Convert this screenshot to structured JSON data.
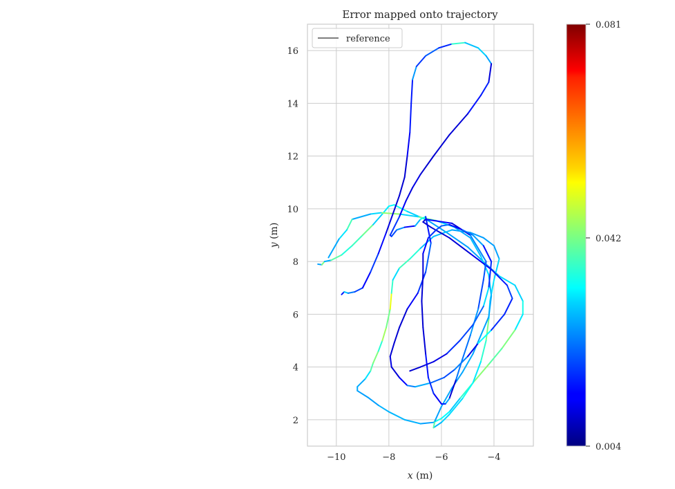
{
  "chart_data": {
    "type": "line",
    "title": "Error mapped onto trajectory",
    "xlabel_var": "x",
    "xlabel_unit": "(m)",
    "ylabel_var": "y",
    "ylabel_unit": "(m)",
    "xlim": [
      -11.1,
      -2.5
    ],
    "ylim": [
      1.0,
      17.0
    ],
    "xticks": [
      {
        "value": -10,
        "label": "−10"
      },
      {
        "value": -8,
        "label": "−8"
      },
      {
        "value": -6,
        "label": "−6"
      },
      {
        "value": -4,
        "label": "−4"
      }
    ],
    "yticks": [
      {
        "value": 2,
        "label": "2"
      },
      {
        "value": 4,
        "label": "4"
      },
      {
        "value": 6,
        "label": "6"
      },
      {
        "value": 8,
        "label": "8"
      },
      {
        "value": 10,
        "label": "10"
      },
      {
        "value": 12,
        "label": "12"
      },
      {
        "value": 14,
        "label": "14"
      },
      {
        "value": 16,
        "label": "16"
      }
    ],
    "grid": true,
    "legend": {
      "position": "top-left",
      "entries": [
        {
          "label": "reference",
          "color": "#6b6b6b"
        }
      ]
    },
    "colorbar": {
      "cmap": "jet",
      "min": 0.004,
      "max": 0.081,
      "tick_values": [
        0.004,
        0.042,
        0.081
      ],
      "tick_labels": [
        "0.004",
        "0.042",
        "0.081"
      ]
    },
    "series": [
      {
        "points": [
          [
            -10.7,
            7.9
          ],
          [
            -10.55,
            7.88
          ],
          [
            -10.45,
            8.0
          ],
          [
            -10.2,
            8.05
          ],
          [
            -9.8,
            8.25
          ],
          [
            -9.4,
            8.6
          ],
          [
            -9.0,
            9.0
          ],
          [
            -8.6,
            9.4
          ],
          [
            -8.25,
            9.8
          ],
          [
            -8.0,
            10.1
          ],
          [
            -7.8,
            10.15
          ],
          [
            -7.3,
            9.9
          ],
          [
            -6.5,
            9.55
          ],
          [
            -5.8,
            9.1
          ],
          [
            -5.0,
            8.55
          ],
          [
            -4.3,
            7.9
          ],
          [
            -3.8,
            7.45
          ],
          [
            -3.2,
            7.1
          ],
          [
            -2.9,
            6.5
          ],
          [
            -2.9,
            6.0
          ],
          [
            -3.2,
            5.4
          ],
          [
            -3.7,
            4.7
          ],
          [
            -4.2,
            4.1
          ],
          [
            -4.8,
            3.4
          ],
          [
            -5.3,
            2.8
          ],
          [
            -5.7,
            2.3
          ],
          [
            -6.0,
            2.05
          ],
          [
            -6.3,
            1.9
          ],
          [
            -6.8,
            1.85
          ],
          [
            -7.4,
            2.0
          ],
          [
            -8.0,
            2.3
          ],
          [
            -8.4,
            2.55
          ],
          [
            -8.8,
            2.85
          ],
          [
            -9.2,
            3.1
          ],
          [
            -9.2,
            3.25
          ],
          [
            -8.9,
            3.55
          ],
          [
            -8.7,
            3.85
          ],
          [
            -8.6,
            4.15
          ],
          [
            -8.4,
            4.6
          ],
          [
            -8.25,
            5.0
          ],
          [
            -8.1,
            5.5
          ],
          [
            -7.95,
            6.2
          ],
          [
            -7.9,
            6.8
          ],
          [
            -7.85,
            7.3
          ],
          [
            -7.6,
            7.75
          ],
          [
            -7.2,
            8.1
          ],
          [
            -6.8,
            8.5
          ],
          [
            -6.3,
            8.95
          ],
          [
            -5.6,
            9.2
          ],
          [
            -4.9,
            9.1
          ],
          [
            -4.4,
            8.9
          ],
          [
            -4.0,
            8.6
          ],
          [
            -3.8,
            8.1
          ],
          [
            -4.0,
            7.3
          ],
          [
            -4.15,
            6.5
          ],
          [
            -4.2,
            5.8
          ],
          [
            -4.3,
            5.0
          ],
          [
            -4.5,
            4.2
          ],
          [
            -4.8,
            3.4
          ],
          [
            -5.2,
            2.8
          ],
          [
            -5.7,
            2.2
          ],
          [
            -6.0,
            1.9
          ],
          [
            -6.3,
            1.7
          ],
          [
            -6.25,
            1.95
          ],
          [
            -6.0,
            2.5
          ],
          [
            -5.6,
            3.2
          ],
          [
            -5.2,
            3.8
          ],
          [
            -4.8,
            4.5
          ],
          [
            -4.5,
            5.2
          ],
          [
            -4.2,
            5.9
          ],
          [
            -4.1,
            6.7
          ],
          [
            -4.2,
            7.5
          ],
          [
            -4.5,
            8.2
          ],
          [
            -4.9,
            8.9
          ],
          [
            -5.5,
            9.3
          ],
          [
            -6.2,
            9.55
          ],
          [
            -6.9,
            9.7
          ],
          [
            -7.6,
            9.8
          ],
          [
            -8.3,
            9.85
          ],
          [
            -8.7,
            9.8
          ],
          [
            -9.4,
            9.6
          ],
          [
            -9.6,
            9.2
          ],
          [
            -9.9,
            8.85
          ],
          [
            -10.3,
            8.15
          ]
        ]
      },
      {
        "points": [
          [
            -9.8,
            6.75
          ],
          [
            -9.7,
            6.85
          ],
          [
            -9.55,
            6.8
          ],
          [
            -9.3,
            6.85
          ],
          [
            -9.0,
            7.0
          ],
          [
            -8.7,
            7.6
          ],
          [
            -8.4,
            8.3
          ],
          [
            -8.1,
            9.1
          ],
          [
            -7.85,
            9.8
          ],
          [
            -7.6,
            10.5
          ],
          [
            -7.4,
            11.2
          ],
          [
            -7.3,
            12.0
          ],
          [
            -7.2,
            12.9
          ],
          [
            -7.15,
            14.0
          ],
          [
            -7.1,
            14.9
          ],
          [
            -6.95,
            15.4
          ],
          [
            -6.6,
            15.8
          ],
          [
            -6.1,
            16.1
          ],
          [
            -5.6,
            16.25
          ],
          [
            -5.1,
            16.3
          ],
          [
            -4.6,
            16.1
          ],
          [
            -4.3,
            15.8
          ],
          [
            -4.1,
            15.5
          ],
          [
            -4.2,
            14.8
          ],
          [
            -4.5,
            14.3
          ],
          [
            -5.0,
            13.6
          ],
          [
            -5.7,
            12.8
          ],
          [
            -6.3,
            12.0
          ],
          [
            -6.8,
            11.3
          ],
          [
            -7.1,
            10.8
          ],
          [
            -7.35,
            10.3
          ],
          [
            -7.6,
            9.7
          ],
          [
            -7.95,
            9.0
          ],
          [
            -7.9,
            8.95
          ],
          [
            -7.7,
            9.2
          ],
          [
            -7.4,
            9.3
          ],
          [
            -7.0,
            9.35
          ],
          [
            -6.8,
            9.6
          ],
          [
            -6.6,
            9.7
          ],
          [
            -6.5,
            9.2
          ],
          [
            -6.4,
            8.7
          ],
          [
            -6.6,
            7.6
          ],
          [
            -6.9,
            6.8
          ],
          [
            -7.3,
            6.2
          ],
          [
            -7.6,
            5.5
          ],
          [
            -7.8,
            4.9
          ],
          [
            -7.95,
            4.4
          ],
          [
            -7.9,
            4.0
          ],
          [
            -7.6,
            3.6
          ],
          [
            -7.3,
            3.3
          ],
          [
            -7.0,
            3.25
          ],
          [
            -6.4,
            3.4
          ],
          [
            -5.9,
            3.6
          ],
          [
            -5.5,
            3.9
          ],
          [
            -5.0,
            4.4
          ],
          [
            -4.6,
            4.9
          ],
          [
            -4.1,
            5.4
          ],
          [
            -3.6,
            6.0
          ],
          [
            -3.3,
            6.6
          ],
          [
            -3.5,
            7.1
          ],
          [
            -4.1,
            7.7
          ],
          [
            -4.9,
            8.3
          ],
          [
            -5.7,
            8.9
          ],
          [
            -6.4,
            9.3
          ],
          [
            -6.7,
            9.5
          ],
          [
            -6.6,
            9.6
          ],
          [
            -5.6,
            9.45
          ],
          [
            -4.9,
            9.0
          ],
          [
            -4.3,
            8.0
          ],
          [
            -4.4,
            7.3
          ],
          [
            -4.6,
            6.2
          ],
          [
            -4.9,
            5.2
          ],
          [
            -5.2,
            4.3
          ],
          [
            -5.45,
            3.5
          ],
          [
            -5.7,
            2.8
          ],
          [
            -5.85,
            2.6
          ],
          [
            -6.0,
            2.6
          ],
          [
            -6.3,
            3.0
          ],
          [
            -6.5,
            3.6
          ],
          [
            -6.6,
            4.5
          ],
          [
            -6.7,
            5.5
          ],
          [
            -6.75,
            6.5
          ],
          [
            -6.7,
            7.5
          ],
          [
            -6.7,
            8.3
          ],
          [
            -6.5,
            8.9
          ],
          [
            -6.2,
            9.2
          ],
          [
            -6.0,
            9.35
          ],
          [
            -5.7,
            9.4
          ],
          [
            -5.2,
            9.2
          ],
          [
            -4.8,
            9.0
          ],
          [
            -4.4,
            8.6
          ],
          [
            -4.1,
            8.0
          ],
          [
            -4.2,
            7.0
          ],
          [
            -4.4,
            6.3
          ],
          [
            -4.8,
            5.6
          ],
          [
            -5.3,
            5.0
          ],
          [
            -5.8,
            4.5
          ],
          [
            -6.3,
            4.2
          ],
          [
            -6.8,
            4.0
          ],
          [
            -7.2,
            3.85
          ]
        ]
      }
    ]
  }
}
